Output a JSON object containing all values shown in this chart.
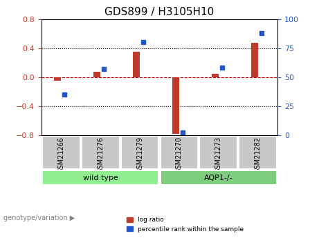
{
  "title": "GDS899 / H3105H10",
  "samples": [
    "GSM21266",
    "GSM21276",
    "GSM21279",
    "GSM21270",
    "GSM21273",
    "GSM21282"
  ],
  "log_ratio": [
    -0.05,
    0.07,
    0.35,
    -0.78,
    0.04,
    0.47
  ],
  "percentile_rank": [
    35,
    57,
    80,
    2,
    58,
    88
  ],
  "groups": [
    {
      "label": "wild type",
      "samples": [
        0,
        1,
        2
      ],
      "color": "#90ee90"
    },
    {
      "label": "AQP1-/-",
      "samples": [
        3,
        4,
        5
      ],
      "color": "#90ee90"
    }
  ],
  "ylim_left": [
    -0.8,
    0.8
  ],
  "ylim_right": [
    0,
    100
  ],
  "yticks_left": [
    -0.8,
    -0.4,
    0.0,
    0.4,
    0.8
  ],
  "yticks_right": [
    0,
    25,
    50,
    75,
    100
  ],
  "bar_width": 0.35,
  "red_color": "#c0392b",
  "blue_color": "#2255cc",
  "genotype_label": "genotype/variation",
  "group_box_color": "#c8c8c8",
  "left_ylabel_color": "#c0392b",
  "right_ylabel_color": "#2255cc",
  "dotted_line_color": "#000000",
  "zero_line_color": "#cc0000"
}
